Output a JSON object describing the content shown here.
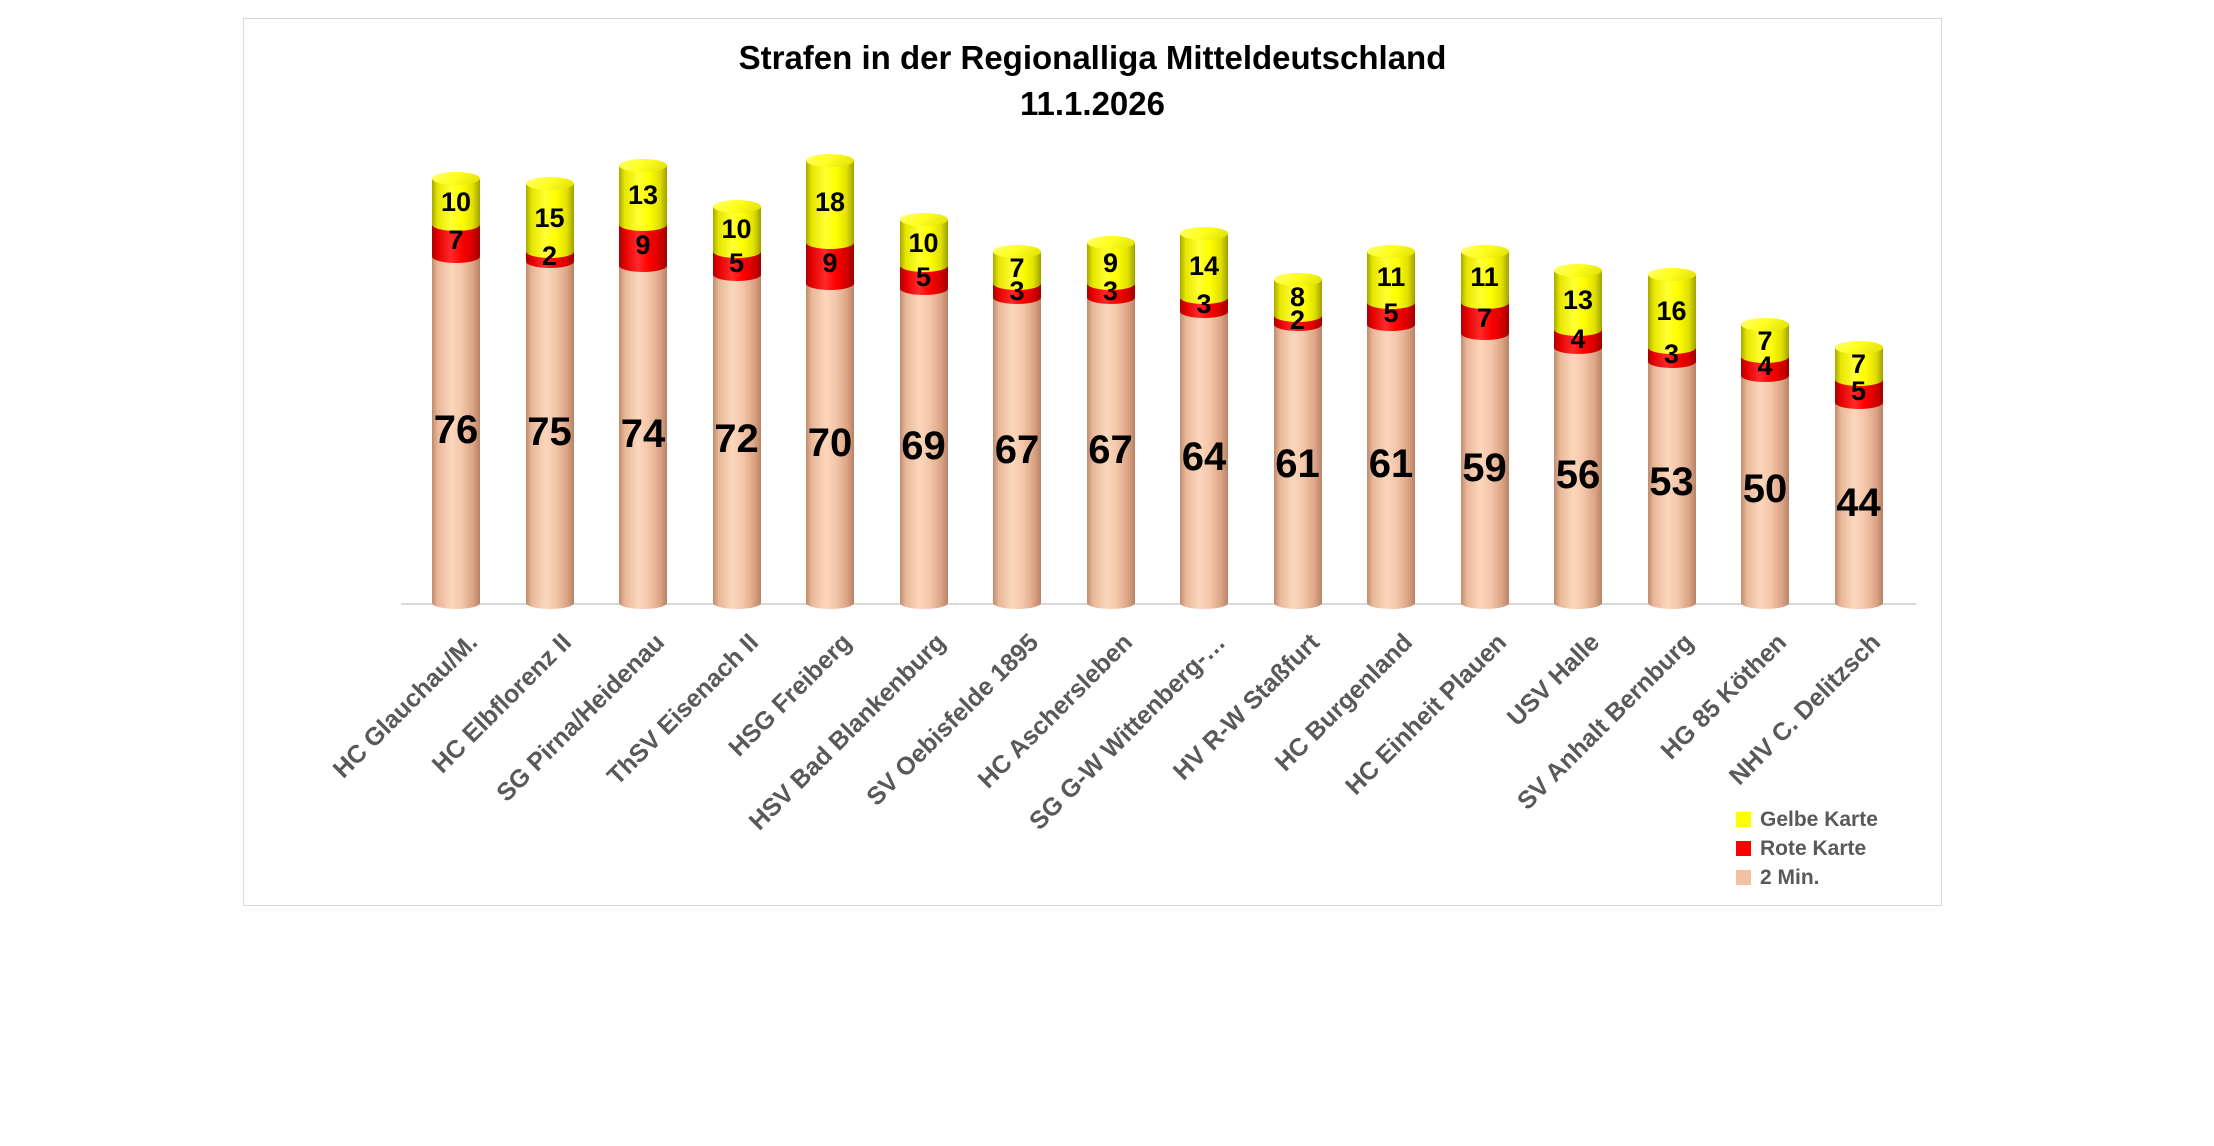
{
  "chart": {
    "title": "Strafen in der Regionalliga Mitteldeutschland",
    "subtitle": "11.1.2026",
    "frame_border_color": "#d9d9d9",
    "axis_color": "#d9d9d9",
    "category_label_color": "#595959",
    "legend_text_color": "#595959"
  },
  "chart_data": {
    "type": "bar",
    "stacked": true,
    "shape": "cylinder",
    "orientation": "vertical",
    "title": "Strafen in der Regionalliga Mitteldeutschland",
    "subtitle": "11.1.2026",
    "grid": false,
    "value_labels": true,
    "ylim": [
      0,
      100
    ],
    "categories": [
      "HC Glauchau/M.",
      "HC Elbflorenz II",
      "SG Pirna/Heidenau",
      "ThSV Eisenach II",
      "HSG Freiberg",
      "HSV Bad Blankenburg",
      "SV Oebisfelde 1895",
      "HC Aschersleben",
      "SG G-W Wittenberg-…",
      "HV R-W Staßfurt",
      "HC Burgenland",
      "HC Einheit Plauen",
      "USV Halle",
      "SV Anhalt Bernburg",
      "HG 85 Köthen",
      "NHV C. Delitzsch"
    ],
    "series": [
      {
        "name": "2 Min.",
        "color": "#f2c0a2",
        "values": [
          76,
          75,
          74,
          72,
          70,
          69,
          67,
          67,
          64,
          61,
          61,
          59,
          56,
          53,
          50,
          44
        ]
      },
      {
        "name": "Rote Karte",
        "color": "#ff0000",
        "values": [
          7,
          2,
          9,
          5,
          9,
          5,
          3,
          3,
          3,
          2,
          5,
          7,
          4,
          3,
          4,
          5
        ]
      },
      {
        "name": "Gelbe Karte",
        "color": "#ffff00",
        "values": [
          10,
          15,
          13,
          10,
          18,
          10,
          7,
          9,
          14,
          8,
          11,
          11,
          13,
          16,
          7,
          7
        ]
      }
    ],
    "legend": [
      {
        "label": "Gelbe Karte",
        "color": "#ffff00"
      },
      {
        "label": "Rote Karte",
        "color": "#ff0000"
      },
      {
        "label": "2 Min.",
        "color": "#f2c0a2"
      }
    ],
    "legend_position": "bottom-right"
  }
}
